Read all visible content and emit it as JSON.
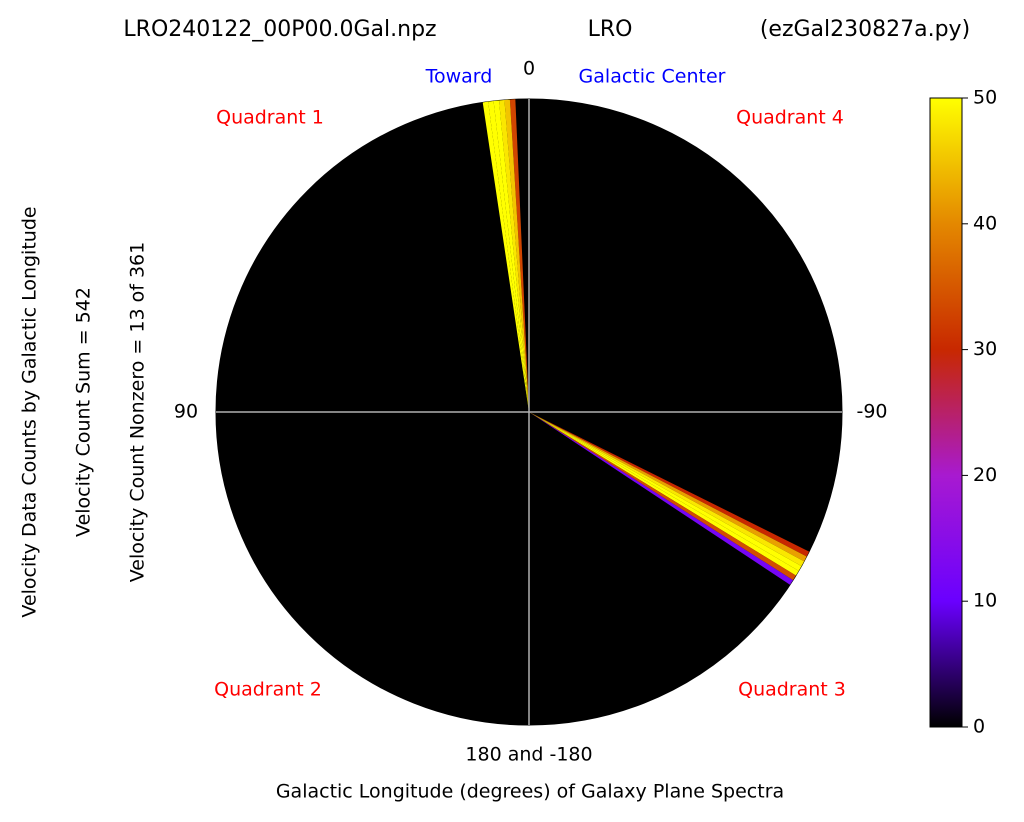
{
  "chart_data": {
    "type": "polar",
    "title_parts": [
      "LRO240122_00P00.0Gal.npz",
      "LRO",
      "(ezGal230827a.py)"
    ],
    "xlabel": "Galactic Longitude (degrees) of Galaxy Plane Spectra",
    "ylabel_lines": [
      "Velocity Data Counts by Galactic Longitude",
      "Velocity Count Sum = 542",
      "Velocity Count Nonzero = 13 of 361"
    ],
    "annotations": {
      "toward": "Toward",
      "center": "Galactic Center",
      "q1": "Quadrant 1",
      "q2": "Quadrant 2",
      "q3": "Quadrant 3",
      "q4": "Quadrant 4"
    },
    "thetaticks": [
      0,
      90,
      -90,
      {
        "value": 180,
        "label": "180 and -180"
      }
    ],
    "x": [
      3,
      4,
      5,
      6,
      7,
      8,
      -117,
      -118,
      -119,
      -120,
      -121,
      -122,
      -123
    ],
    "values": [
      33,
      45,
      48,
      50,
      50,
      50,
      30,
      42,
      48,
      50,
      50,
      34,
      12
    ],
    "clim": [
      0,
      50
    ],
    "cticks": [
      0,
      10,
      20,
      30,
      40,
      50
    ],
    "colormap": [
      "#000000",
      "#6a00ff",
      "#a81ad0",
      "#c82800",
      "#e48800",
      "#ffff00"
    ],
    "grid": true
  }
}
